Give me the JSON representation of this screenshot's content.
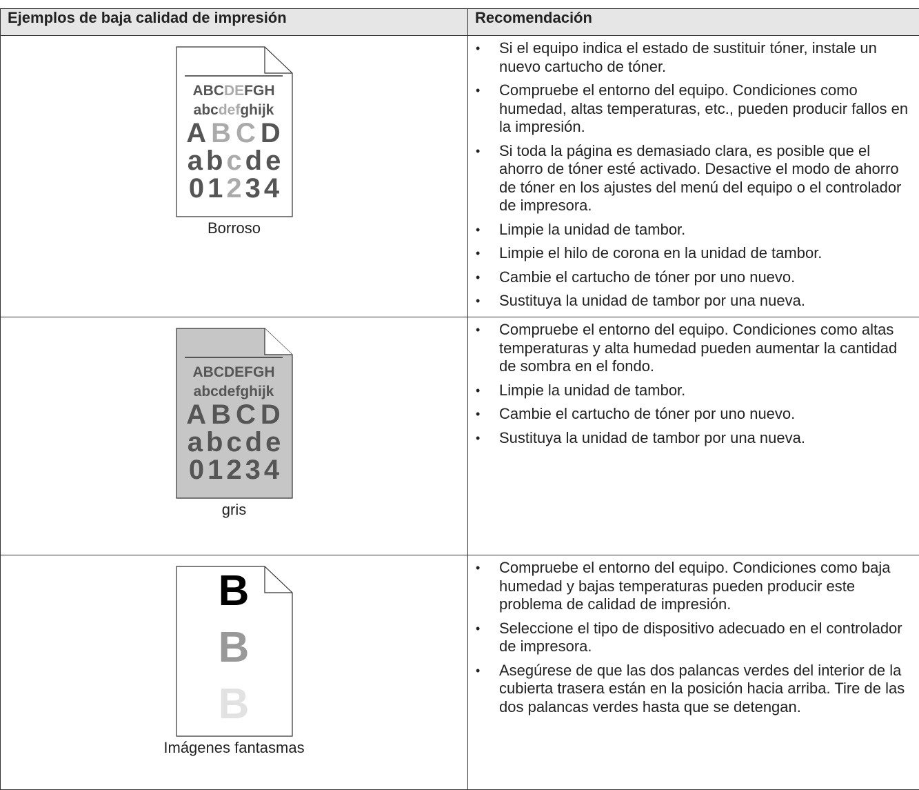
{
  "table": {
    "headers": [
      "Ejemplos de baja calidad de impresión",
      "Recomendación"
    ],
    "rows": [
      {
        "example": {
          "lines": [
            [
              "ABC",
              "DE",
              "FGH"
            ],
            [
              "abc",
              "def",
              "ghijk"
            ],
            [
              "A",
              "B",
              "C",
              "D"
            ],
            [
              "a",
              "b",
              "c",
              "d",
              "e"
            ],
            [
              "0",
              "1",
              "2",
              "3",
              "4"
            ]
          ],
          "caption": "Borroso"
        },
        "recommendations": [
          "Si el equipo indica el estado de sustituir tóner, instale un nuevo cartucho de tóner.",
          "Compruebe el entorno del equipo. Condiciones como humedad, altas temperaturas, etc., pueden producir fallos en la impresión.",
          "Si toda la página es demasiado clara, es posible que el ahorro de tóner esté activado. Desactive el modo de ahorro de tóner en los ajustes del menú del equipo o el controlador de impresora.",
          "Limpie la unidad de tambor.",
          "Limpie el hilo de corona en la unidad de tambor.",
          "Cambie el cartucho de tóner por uno nuevo.",
          "Sustituya la unidad de tambor por una nueva."
        ]
      },
      {
        "example": {
          "lines": [
            [
              "ABCDEFGH"
            ],
            [
              "abcdefghijk"
            ],
            [
              "A",
              "B",
              "C",
              "D"
            ],
            [
              "a",
              "b",
              "c",
              "d",
              "e"
            ],
            [
              "0",
              "1",
              "2",
              "3",
              "4"
            ]
          ],
          "caption": "gris"
        },
        "recommendations": [
          "Compruebe el entorno del equipo. Condiciones como altas temperaturas y alta humedad pueden aumentar la cantidad de sombra en el fondo.",
          "Limpie la unidad de tambor.",
          "Cambie el cartucho de tóner por uno nuevo.",
          "Sustituya la unidad de tambor por una nueva."
        ]
      },
      {
        "example": {
          "lines": [
            [
              "B"
            ],
            [
              "B"
            ],
            [
              "B"
            ]
          ],
          "caption": "Imágenes fantasmas"
        },
        "recommendations": [
          "Compruebe el entorno del equipo. Condiciones como baja humedad y bajas temperaturas pueden producir este problema de calidad de impresión.",
          "Seleccione el tipo de dispositivo adecuado en el controlador de impresora.",
          "Asegúrese de que las dos palancas verdes del interior de la cubierta trasera están en la posición hacia arriba. Tire de las dos palancas verdes hasta que se detengan."
        ]
      }
    ]
  }
}
